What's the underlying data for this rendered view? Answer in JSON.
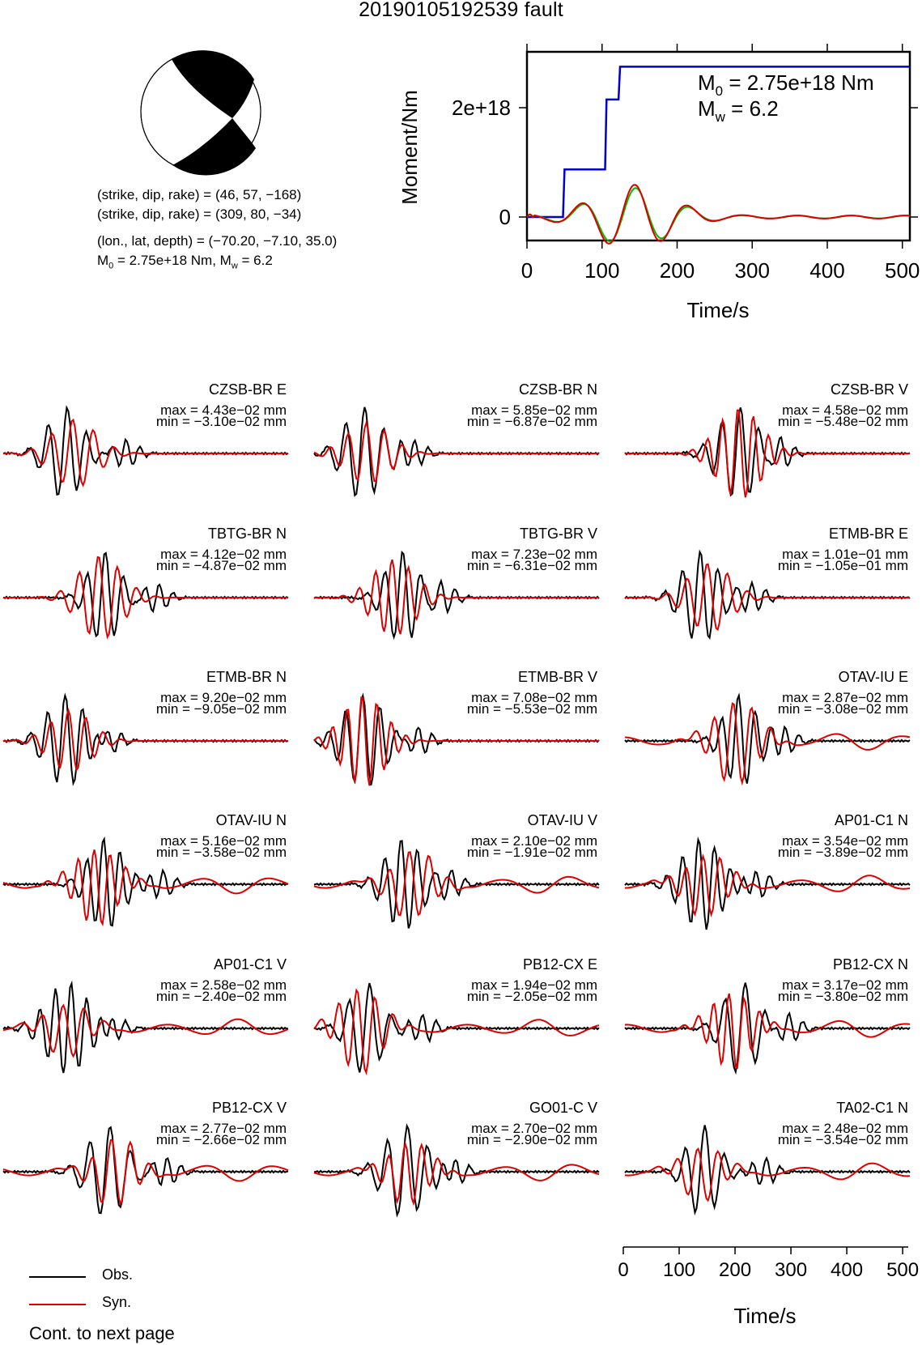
{
  "title": "20190105192539 fault",
  "mechanism": {
    "line1": "(strike, dip, rake) = (46, 57, −168)",
    "line2": "(strike, dip, rake) = (309, 80, −34)",
    "line3": "(lon., lat, depth) = (−70.20, −7.10, 35.0)",
    "line4_prefix": "M",
    "line4_sub0": "0",
    "line4_mid": " = 2.75e+18 Nm, M",
    "line4_subw": "w",
    "line4_suffix": " = 6.2"
  },
  "moment_rate": {
    "ylabel": "Moment/Nm",
    "xlabel": "Time/s",
    "m0_label": "M",
    "m0_sub": "0",
    "m0_value": " = 2.75e+18 Nm",
    "mw_label": "M",
    "mw_sub": "w",
    "mw_value": " = 6.2",
    "y_ticks": [
      "0",
      "2e+18"
    ],
    "x_ticks": [
      "0",
      "100",
      "200",
      "300",
      "400",
      "500"
    ]
  },
  "legend": {
    "obs": "Obs.",
    "syn": "Syn.",
    "obs_color": "#000000",
    "syn_color": "#dd0000"
  },
  "bottom_axis": {
    "xlabel": "Time/s",
    "x_ticks": [
      "0",
      "100",
      "200",
      "300",
      "400",
      "500"
    ]
  },
  "footer": "Cont. to next page",
  "colors": {
    "cumulative": "#0000cc",
    "rate_green": "#00bb00",
    "rate_red": "#dd0000"
  },
  "chart_data": [
    {
      "type": "line",
      "title": "",
      "xlabel": "Time/s",
      "ylabel": "Moment/Nm",
      "xlim": [
        0,
        510
      ],
      "ylim": [
        -4.5e+17,
        3e+18
      ],
      "series": [
        {
          "name": "cumulative moment",
          "color": "#0000cc",
          "x": [
            0,
            48,
            50,
            104,
            106,
            122,
            124,
            510
          ],
          "y": [
            0,
            0,
            8.7e+17,
            8.7e+17,
            2.15e+18,
            2.15e+18,
            2.75e+18,
            2.75e+18
          ]
        }
      ]
    },
    {
      "type": "line",
      "title": "",
      "xlabel": "Time/s",
      "ylabel": "",
      "xlim": [
        0,
        510
      ],
      "panels": [
        {
          "station": "CZSB-BR E",
          "max": "max = 4.43e−02 mm",
          "min": "min = −3.10e−02 mm"
        },
        {
          "station": "CZSB-BR N",
          "max": "max = 5.85e−02 mm",
          "min": "min = −6.87e−02 mm"
        },
        {
          "station": "CZSB-BR V",
          "max": "max = 4.58e−02 mm",
          "min": "min = −5.48e−02 mm"
        },
        {
          "station": "TBTG-BR N",
          "max": "max = 4.12e−02 mm",
          "min": "min = −4.87e−02 mm"
        },
        {
          "station": "TBTG-BR V",
          "max": "max = 7.23e−02 mm",
          "min": "min = −6.31e−02 mm"
        },
        {
          "station": "ETMB-BR E",
          "max": "max = 1.01e−01 mm",
          "min": "min = −1.05e−01 mm"
        },
        {
          "station": "ETMB-BR N",
          "max": "max = 9.20e−02 mm",
          "min": "min = −9.05e−02 mm"
        },
        {
          "station": "ETMB-BR V",
          "max": "max = 7.08e−02 mm",
          "min": "min = −5.53e−02 mm"
        },
        {
          "station": "OTAV-IU E",
          "max": "max = 2.87e−02 mm",
          "min": "min = −3.08e−02 mm"
        },
        {
          "station": "OTAV-IU N",
          "max": "max = 5.16e−02 mm",
          "min": "min = −3.58e−02 mm"
        },
        {
          "station": "OTAV-IU V",
          "max": "max = 2.10e−02 mm",
          "min": "min = −1.91e−02 mm"
        },
        {
          "station": "AP01-C1 N",
          "max": "max = 3.54e−02 mm",
          "min": "min = −3.89e−02 mm"
        },
        {
          "station": "AP01-C1 V",
          "max": "max = 2.58e−02 mm",
          "min": "min = −2.40e−02 mm"
        },
        {
          "station": "PB12-CX E",
          "max": "max = 1.94e−02 mm",
          "min": "min = −2.05e−02 mm"
        },
        {
          "station": "PB12-CX N",
          "max": "max = 3.17e−02 mm",
          "min": "min = −3.80e−02 mm"
        },
        {
          "station": "PB12-CX V",
          "max": "max = 2.77e−02 mm",
          "min": "min = −2.66e−02 mm"
        },
        {
          "station": "GO01-C V",
          "max": "max = 2.70e−02 mm",
          "min": "min = −2.90e−02 mm"
        },
        {
          "station": "TA02-C1 N",
          "max": "max = 2.48e−02 mm",
          "min": "min = −3.54e−02 mm"
        }
      ]
    }
  ]
}
